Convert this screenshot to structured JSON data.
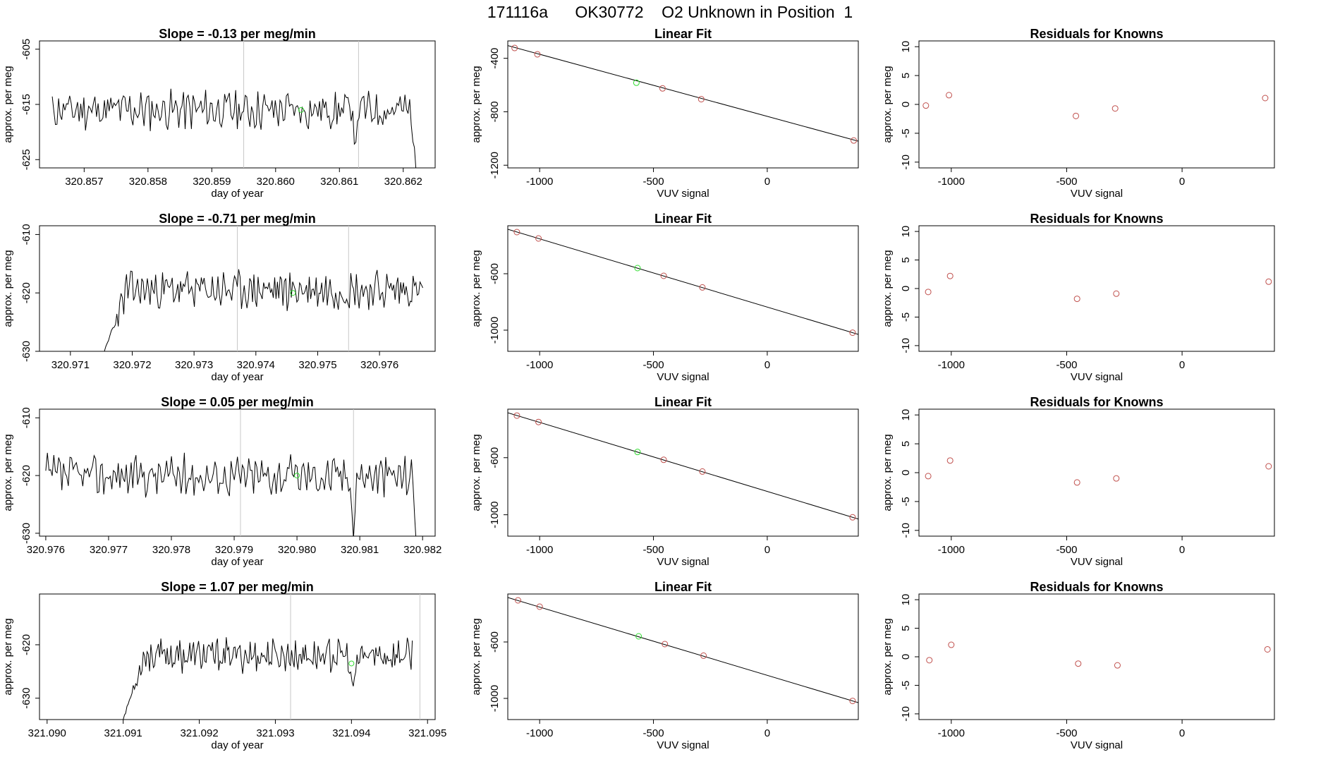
{
  "supertitle": "171116a      OK30772    O2 Unknown in Position  1",
  "colors": {
    "line": "#000000",
    "known": "#c0504d",
    "unknown": "#33dd33",
    "grid": "#c8c8c8"
  },
  "chart_data": [
    {
      "type": "line",
      "kind": "trace",
      "row": 0,
      "title": "Slope =  -0.13  per meg/min",
      "xlabel": "day of year",
      "ylabel": "approx. per meg",
      "xlim": [
        320.8563,
        320.8625
      ],
      "ylim": [
        -626.5,
        -603.5
      ],
      "xticks": [
        "320.857",
        "320.858",
        "320.859",
        "320.860",
        "320.861",
        "320.862"
      ],
      "yticks": [
        "-605",
        "-615",
        "-625"
      ],
      "vlines": [
        320.8595,
        320.8613
      ],
      "trace": {
        "x_start": 320.8565,
        "x_end": 320.8622,
        "baseline": -616,
        "amplitude": 3,
        "seed": 11,
        "events": [
          {
            "x": 320.86125,
            "y": -624,
            "width": 4e-05
          }
        ],
        "tail": {
          "x": 320.8622,
          "y_end": -627,
          "width": 8e-05
        }
      },
      "unknown_point": {
        "x": 320.8604,
        "y": -616
      }
    },
    {
      "type": "scatter",
      "kind": "fit",
      "row": 0,
      "title": "Linear Fit",
      "xlabel": "VUV signal",
      "ylabel": "approx. per meg",
      "xlim": [
        -1140,
        400
      ],
      "ylim": [
        -1220,
        -270
      ],
      "xticks": [
        "-1000",
        "-500",
        "0"
      ],
      "yticks": [
        "-400",
        "-800",
        "-1200"
      ],
      "known_points": [
        {
          "x": -1110,
          "y": -323
        },
        {
          "x": -1010,
          "y": -370
        },
        {
          "x": -460,
          "y": -625
        },
        {
          "x": -290,
          "y": -706
        },
        {
          "x": 380,
          "y": -1015
        }
      ],
      "unknown_point": {
        "x": -575,
        "y": -583
      },
      "fit_line": {
        "x": [
          -1140,
          400
        ],
        "y": [
          -305,
          -1020
        ]
      }
    },
    {
      "type": "scatter",
      "kind": "residual",
      "row": 0,
      "title": "Residuals for Knowns",
      "xlabel": "VUV signal",
      "ylabel": "approx. per meg",
      "xlim": [
        -1140,
        400
      ],
      "ylim": [
        -11,
        11
      ],
      "xticks": [
        "-1000",
        "-500",
        "0"
      ],
      "yticks": [
        "-10",
        "-5",
        "0",
        "5",
        "10"
      ],
      "points": [
        {
          "x": -1110,
          "y": -0.2
        },
        {
          "x": -1010,
          "y": 1.6
        },
        {
          "x": -460,
          "y": -2
        },
        {
          "x": -290,
          "y": -0.7
        },
        {
          "x": 360,
          "y": 1.1
        }
      ]
    },
    {
      "type": "line",
      "kind": "trace",
      "row": 1,
      "title": "Slope =  -0.71  per meg/min",
      "xlabel": "day of year",
      "ylabel": "approx. per meg",
      "xlim": [
        320.9705,
        320.9769
      ],
      "ylim": [
        -630,
        -608.5
      ],
      "xticks": [
        "320.971",
        "320.972",
        "320.973",
        "320.974",
        "320.975",
        "320.976"
      ],
      "yticks": [
        "-610",
        "-620",
        "-630"
      ],
      "vlines": [
        320.9737,
        320.9755
      ],
      "trace": {
        "x_start": 320.97155,
        "x_end": 320.9767,
        "baseline": -619.5,
        "amplitude": 2.8,
        "seed": 23,
        "head": {
          "y_start": -630,
          "width": 0.0004
        }
      },
      "unknown_point": {
        "x": 320.9746,
        "y": -620
      }
    },
    {
      "type": "scatter",
      "kind": "fit",
      "row": 1,
      "title": "Linear Fit",
      "xlabel": "VUV signal",
      "ylabel": "approx. per meg",
      "xlim": [
        -1140,
        400
      ],
      "ylim": [
        -1150,
        -260
      ],
      "xticks": [
        "-1000",
        "-500",
        "0"
      ],
      "yticks": [
        "-600",
        "-1000"
      ],
      "known_points": [
        {
          "x": -1100,
          "y": -305
        },
        {
          "x": -1005,
          "y": -350
        },
        {
          "x": -455,
          "y": -615
        },
        {
          "x": -285,
          "y": -697
        },
        {
          "x": 375,
          "y": -1018
        }
      ],
      "unknown_point": {
        "x": -570,
        "y": -560
      },
      "fit_line": {
        "x": [
          -1140,
          400
        ],
        "y": [
          -285,
          -1030
        ]
      }
    },
    {
      "type": "scatter",
      "kind": "residual",
      "row": 1,
      "title": "Residuals for Knowns",
      "xlabel": "VUV signal",
      "ylabel": "approx. per meg",
      "xlim": [
        -1140,
        400
      ],
      "ylim": [
        -11,
        11
      ],
      "xticks": [
        "-1000",
        "-500",
        "0"
      ],
      "yticks": [
        "-10",
        "-5",
        "0",
        "5",
        "10"
      ],
      "points": [
        {
          "x": -1100,
          "y": -0.6
        },
        {
          "x": -1005,
          "y": 2.2
        },
        {
          "x": -455,
          "y": -1.8
        },
        {
          "x": -285,
          "y": -0.9
        },
        {
          "x": 375,
          "y": 1.2
        }
      ]
    },
    {
      "type": "line",
      "kind": "trace",
      "row": 2,
      "title": "Slope =  0.05  per meg/min",
      "xlabel": "day of year",
      "ylabel": "approx. per meg",
      "xlim": [
        320.9759,
        320.9822
      ],
      "ylim": [
        -630.5,
        -608.5
      ],
      "xticks": [
        "320.976",
        "320.977",
        "320.978",
        "320.979",
        "320.980",
        "320.981",
        "320.982"
      ],
      "yticks": [
        "-610",
        "-620",
        "-630"
      ],
      "vlines": [
        320.9791,
        320.9809
      ],
      "trace": {
        "x_start": 320.976,
        "x_end": 320.9819,
        "baseline": -620,
        "amplitude": 3,
        "seed": 37,
        "events": [
          {
            "x": 320.9809,
            "y": -631,
            "width": 5e-05
          }
        ],
        "tail": {
          "x": 320.9819,
          "y_end": -632,
          "width": 6e-05
        }
      },
      "unknown_point": {
        "x": 320.98,
        "y": -620
      }
    },
    {
      "type": "scatter",
      "kind": "fit",
      "row": 2,
      "title": "Linear Fit",
      "xlabel": "VUV signal",
      "ylabel": "approx. per meg",
      "xlim": [
        -1140,
        400
      ],
      "ylim": [
        -1150,
        -260
      ],
      "xticks": [
        "-1000",
        "-500",
        "0"
      ],
      "yticks": [
        "-600",
        "-1000"
      ],
      "known_points": [
        {
          "x": -1100,
          "y": -305
        },
        {
          "x": -1005,
          "y": -350
        },
        {
          "x": -455,
          "y": -615
        },
        {
          "x": -285,
          "y": -697
        },
        {
          "x": 375,
          "y": -1018
        }
      ],
      "unknown_point": {
        "x": -570,
        "y": -560
      },
      "fit_line": {
        "x": [
          -1140,
          400
        ],
        "y": [
          -285,
          -1030
        ]
      }
    },
    {
      "type": "scatter",
      "kind": "residual",
      "row": 2,
      "title": "Residuals for Knowns",
      "xlabel": "VUV signal",
      "ylabel": "approx. per meg",
      "xlim": [
        -1140,
        400
      ],
      "ylim": [
        -11,
        11
      ],
      "xticks": [
        "-1000",
        "-500",
        "0"
      ],
      "yticks": [
        "-10",
        "-5",
        "0",
        "5",
        "10"
      ],
      "points": [
        {
          "x": -1100,
          "y": -0.6
        },
        {
          "x": -1005,
          "y": 2.1
        },
        {
          "x": -455,
          "y": -1.7
        },
        {
          "x": -285,
          "y": -1.0
        },
        {
          "x": 375,
          "y": 1.1
        }
      ]
    },
    {
      "type": "line",
      "kind": "trace",
      "row": 3,
      "title": "Slope =  1.07  per meg/min",
      "xlabel": "day of year",
      "ylabel": "approx. per meg",
      "xlim": [
        321.0899,
        321.0951
      ],
      "ylim": [
        -634,
        -610.5
      ],
      "xticks": [
        "321.090",
        "321.091",
        "321.092",
        "321.093",
        "321.094",
        "321.095"
      ],
      "yticks": [
        "-620",
        "-630"
      ],
      "vlines": [
        321.0932,
        321.0949
      ],
      "trace": {
        "x_start": 321.091,
        "x_end": 321.0948,
        "baseline": -622,
        "amplitude": 2.6,
        "seed": 53,
        "head": {
          "y_start": -634,
          "width": 0.0003
        },
        "events": [
          {
            "x": 321.09402,
            "y": -628,
            "width": 8e-05
          }
        ]
      },
      "unknown_point": {
        "x": 321.094,
        "y": -623.5
      }
    },
    {
      "type": "scatter",
      "kind": "fit",
      "row": 3,
      "title": "Linear Fit",
      "xlabel": "VUV signal",
      "ylabel": "approx. per meg",
      "xlim": [
        -1140,
        400
      ],
      "ylim": [
        -1150,
        -260
      ],
      "xticks": [
        "-1000",
        "-500",
        "0"
      ],
      "yticks": [
        "-600",
        "-1000"
      ],
      "known_points": [
        {
          "x": -1095,
          "y": -305
        },
        {
          "x": -1000,
          "y": -350
        },
        {
          "x": -450,
          "y": -615
        },
        {
          "x": -280,
          "y": -697
        },
        {
          "x": 375,
          "y": -1018
        }
      ],
      "unknown_point": {
        "x": -565,
        "y": -560
      },
      "fit_line": {
        "x": [
          -1140,
          400
        ],
        "y": [
          -285,
          -1030
        ]
      }
    },
    {
      "type": "scatter",
      "kind": "residual",
      "row": 3,
      "title": "Residuals for Knowns",
      "xlabel": "VUV signal",
      "ylabel": "approx. per meg",
      "xlim": [
        -1140,
        400
      ],
      "ylim": [
        -11,
        11
      ],
      "xticks": [
        "-1000",
        "-500",
        "0"
      ],
      "yticks": [
        "-10",
        "-5",
        "0",
        "5",
        "10"
      ],
      "points": [
        {
          "x": -1095,
          "y": -0.6
        },
        {
          "x": -1000,
          "y": 2.1
        },
        {
          "x": -450,
          "y": -1.2
        },
        {
          "x": -280,
          "y": -1.5
        },
        {
          "x": 370,
          "y": 1.3
        }
      ]
    }
  ]
}
